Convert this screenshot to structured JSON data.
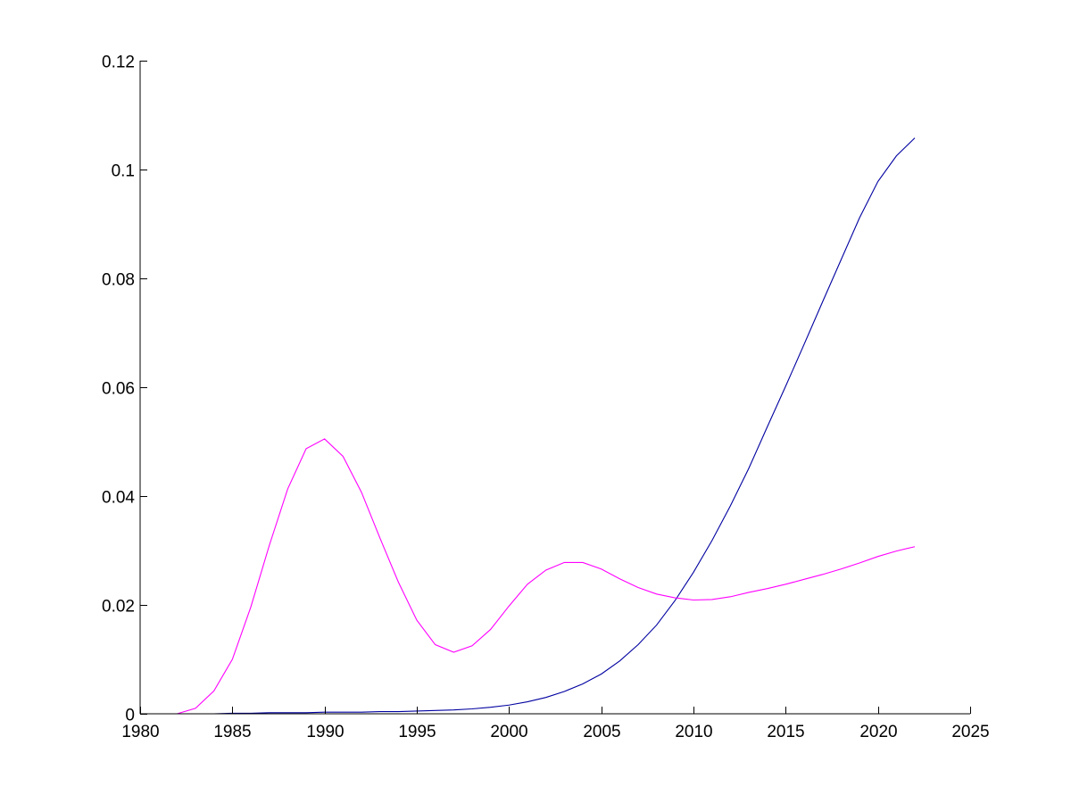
{
  "chart_data": {
    "type": "line",
    "title": "",
    "xlabel": "",
    "ylabel": "",
    "xlim": [
      1980,
      2025
    ],
    "ylim": [
      0,
      0.12
    ],
    "grid": false,
    "legend": "none",
    "x_ticks": [
      "1980",
      "1985",
      "1990",
      "1995",
      "2000",
      "2005",
      "2010",
      "2015",
      "2020",
      "2025"
    ],
    "y_ticks": [
      "0",
      "0.02",
      "0.04",
      "0.06",
      "0.08",
      "0.1",
      "0.12"
    ],
    "x_tick_values": [
      1980,
      1985,
      1990,
      1995,
      2000,
      2005,
      2010,
      2015,
      2020,
      2025
    ],
    "y_tick_values": [
      0,
      0.02,
      0.04,
      0.06,
      0.08,
      0.1,
      0.12
    ],
    "x": [
      1980,
      1981,
      1982,
      1983,
      1984,
      1985,
      1986,
      1987,
      1988,
      1989,
      1990,
      1991,
      1992,
      1993,
      1994,
      1995,
      1996,
      1997,
      1998,
      1999,
      2000,
      2001,
      2002,
      2003,
      2004,
      2005,
      2006,
      2007,
      2008,
      2009,
      2010,
      2011,
      2012,
      2013,
      2014,
      2015,
      2016,
      2017,
      2018,
      2019,
      2020,
      2021,
      2022
    ],
    "series": [
      {
        "color": "#0000a0",
        "values": [
          0,
          0,
          0,
          0,
          0,
          0.0001,
          0.0001,
          0.0002,
          0.0002,
          0.0002,
          0.0003,
          0.0003,
          0.0003,
          0.0004,
          0.0004,
          0.0005,
          0.0006,
          0.0007,
          0.0009,
          0.0012,
          0.0016,
          0.0022,
          0.003,
          0.0041,
          0.0055,
          0.0073,
          0.0097,
          0.0127,
          0.0163,
          0.0208,
          0.026,
          0.0318,
          0.0382,
          0.0451,
          0.0527,
          0.0602,
          0.0679,
          0.0757,
          0.0834,
          0.0911,
          0.0978,
          0.1025,
          0.1058
        ]
      },
      {
        "color": "#ff00ff",
        "values": [
          0,
          0,
          0,
          0.001,
          0.0042,
          0.01,
          0.0196,
          0.0309,
          0.0413,
          0.0487,
          0.0505,
          0.0473,
          0.0407,
          0.0323,
          0.0242,
          0.0172,
          0.0127,
          0.0113,
          0.0125,
          0.0155,
          0.0198,
          0.0238,
          0.0264,
          0.0278,
          0.0278,
          0.0266,
          0.0248,
          0.0232,
          0.022,
          0.0213,
          0.0209,
          0.021,
          0.0215,
          0.0223,
          0.023,
          0.0238,
          0.0247,
          0.0256,
          0.0266,
          0.0277,
          0.0289,
          0.0299,
          0.0307
        ]
      }
    ]
  }
}
